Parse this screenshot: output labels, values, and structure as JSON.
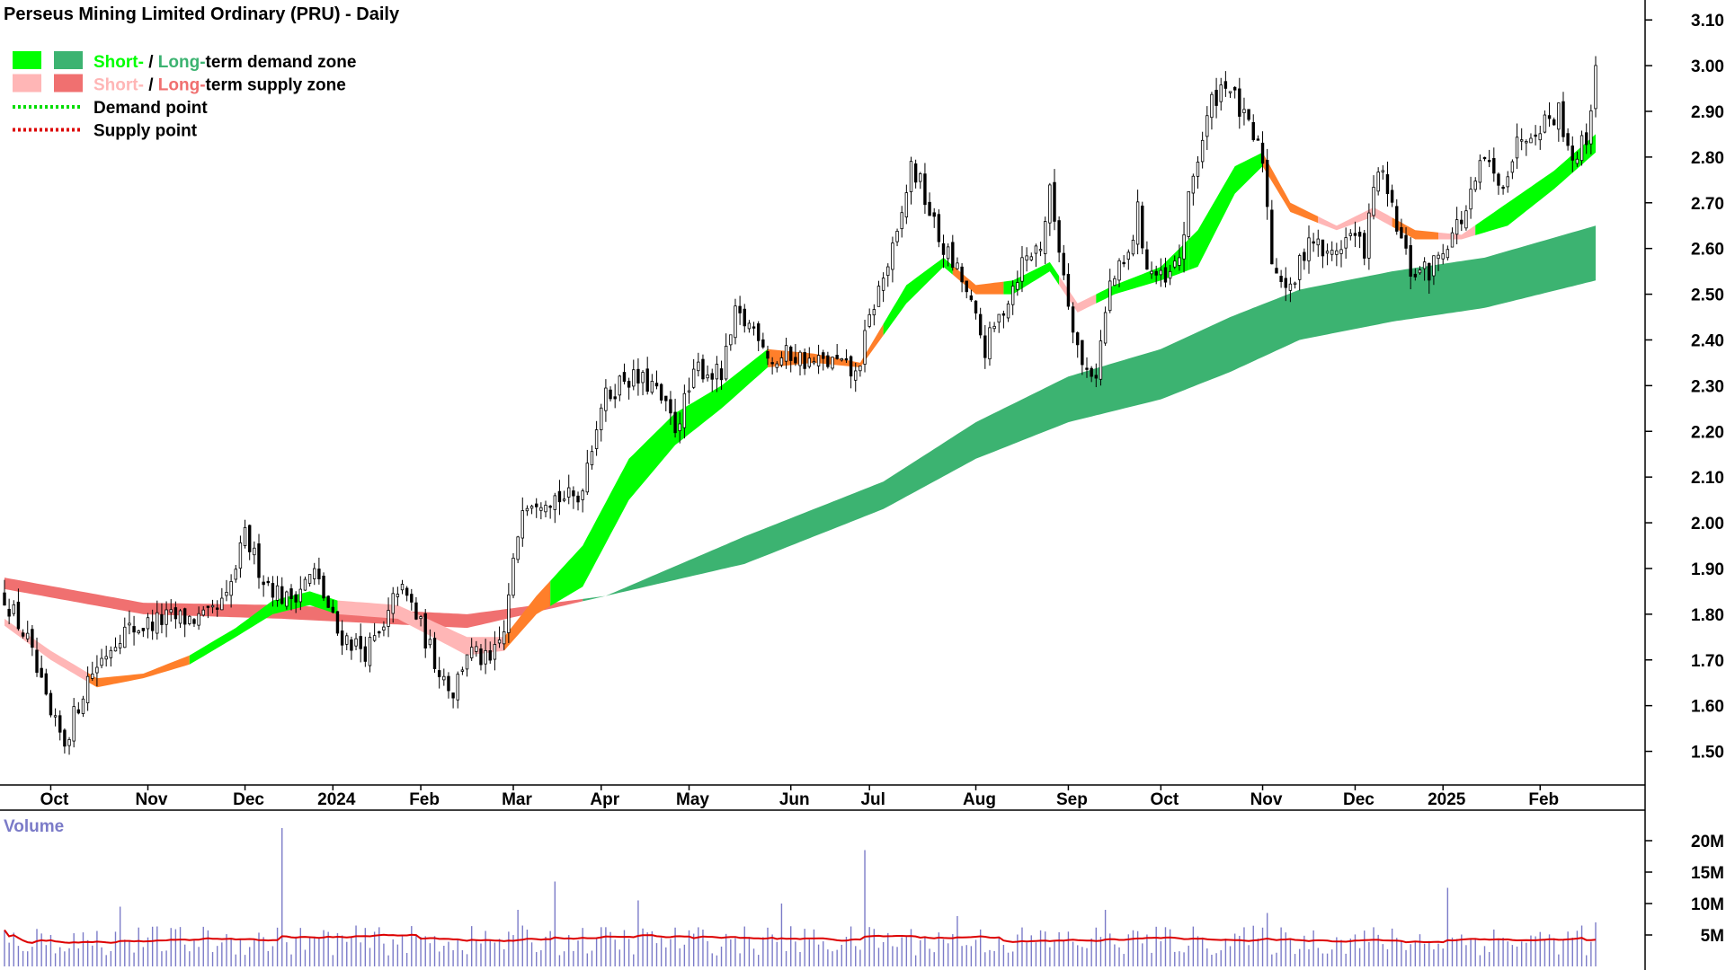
{
  "chart_data": {
    "type": "candlestick",
    "title": "Perseus Mining Limited Ordinary (PRU) - Daily",
    "legend": {
      "placement": "top-left",
      "entries": [
        {
          "id": "demand-zone",
          "parts": [
            "Short-",
            " / ",
            "Long-",
            "term demand zone"
          ],
          "colors": [
            "#00ff00",
            "#000000",
            "#3cb371",
            "#000000"
          ],
          "swatches": [
            "#00ff00",
            "#3cb371"
          ],
          "style": "box"
        },
        {
          "id": "supply-zone",
          "parts": [
            "Short-",
            " / ",
            "Long-",
            "term supply zone"
          ],
          "colors": [
            "#ffb6b6",
            "#000000",
            "#f07070",
            "#000000"
          ],
          "swatches": [
            "#ffb6b6",
            "#f07070"
          ],
          "style": "box"
        },
        {
          "id": "demand-point",
          "parts": [
            "Demand point"
          ],
          "colors": [
            "#000000"
          ],
          "swatches": [
            "#00dd00"
          ],
          "style": "dotted"
        },
        {
          "id": "supply-point",
          "parts": [
            "Supply point"
          ],
          "colors": [
            "#000000"
          ],
          "swatches": [
            "#dd0000"
          ],
          "style": "dotted"
        }
      ]
    },
    "price_axis": {
      "min": 1.45,
      "max": 3.12,
      "ticks": [
        "1.50",
        "1.60",
        "1.70",
        "1.80",
        "1.90",
        "2.00",
        "2.10",
        "2.20",
        "2.30",
        "2.40",
        "2.50",
        "2.60",
        "2.70",
        "2.80",
        "2.90",
        "3.00",
        "3.10"
      ],
      "position": "right"
    },
    "x_labels": [
      {
        "label": "Oct",
        "index": 10
      },
      {
        "label": "Nov",
        "index": 31
      },
      {
        "label": "Dec",
        "index": 52
      },
      {
        "label": "2024",
        "index": 71
      },
      {
        "label": "Feb",
        "index": 90
      },
      {
        "label": "Mar",
        "index": 110
      },
      {
        "label": "Apr",
        "index": 129
      },
      {
        "label": "May",
        "index": 148
      },
      {
        "label": "Jun",
        "index": 170
      },
      {
        "label": "Jul",
        "index": 187
      },
      {
        "label": "Aug",
        "index": 210
      },
      {
        "label": "Sep",
        "index": 230
      },
      {
        "label": "Oct",
        "index": 250
      },
      {
        "label": "Nov",
        "index": 272
      },
      {
        "label": "Dec",
        "index": 292
      },
      {
        "label": "2025",
        "index": 311
      },
      {
        "label": "Feb",
        "index": 332
      }
    ],
    "num_bars": 345,
    "price_anchors": [
      [
        0,
        1.84
      ],
      [
        5,
        1.74
      ],
      [
        10,
        1.57
      ],
      [
        13,
        1.52
      ],
      [
        18,
        1.66
      ],
      [
        25,
        1.76
      ],
      [
        35,
        1.79
      ],
      [
        44,
        1.79
      ],
      [
        48,
        1.83
      ],
      [
        52,
        1.97
      ],
      [
        56,
        1.88
      ],
      [
        61,
        1.83
      ],
      [
        67,
        1.89
      ],
      [
        69,
        1.84
      ],
      [
        72,
        1.76
      ],
      [
        78,
        1.72
      ],
      [
        82,
        1.76
      ],
      [
        85,
        1.86
      ],
      [
        88,
        1.82
      ],
      [
        93,
        1.7
      ],
      [
        97,
        1.63
      ],
      [
        100,
        1.72
      ],
      [
        105,
        1.69
      ],
      [
        108,
        1.76
      ],
      [
        112,
        2.05
      ],
      [
        117,
        2.06
      ],
      [
        124,
        2.05
      ],
      [
        129,
        2.26
      ],
      [
        134,
        2.32
      ],
      [
        140,
        2.3
      ],
      [
        145,
        2.21
      ],
      [
        150,
        2.34
      ],
      [
        155,
        2.32
      ],
      [
        158,
        2.45
      ],
      [
        163,
        2.42
      ],
      [
        166,
        2.35
      ],
      [
        170,
        2.37
      ],
      [
        174,
        2.35
      ],
      [
        180,
        2.35
      ],
      [
        184,
        2.32
      ],
      [
        188,
        2.48
      ],
      [
        193,
        2.62
      ],
      [
        196,
        2.78
      ],
      [
        198,
        2.74
      ],
      [
        202,
        2.62
      ],
      [
        207,
        2.53
      ],
      [
        212,
        2.38
      ],
      [
        216,
        2.47
      ],
      [
        220,
        2.57
      ],
      [
        224,
        2.61
      ],
      [
        226,
        2.72
      ],
      [
        230,
        2.49
      ],
      [
        233,
        2.34
      ],
      [
        236,
        2.33
      ],
      [
        239,
        2.52
      ],
      [
        243,
        2.58
      ],
      [
        245,
        2.68
      ],
      [
        247,
        2.56
      ],
      [
        251,
        2.52
      ],
      [
        254,
        2.58
      ],
      [
        257,
        2.76
      ],
      [
        261,
        2.92
      ],
      [
        264,
        2.97
      ],
      [
        268,
        2.88
      ],
      [
        272,
        2.8
      ],
      [
        274,
        2.58
      ],
      [
        278,
        2.5
      ],
      [
        282,
        2.63
      ],
      [
        286,
        2.58
      ],
      [
        291,
        2.63
      ],
      [
        294,
        2.6
      ],
      [
        297,
        2.78
      ],
      [
        300,
        2.68
      ],
      [
        304,
        2.55
      ],
      [
        308,
        2.55
      ],
      [
        312,
        2.62
      ],
      [
        316,
        2.68
      ],
      [
        320,
        2.8
      ],
      [
        323,
        2.73
      ],
      [
        328,
        2.85
      ],
      [
        333,
        2.88
      ],
      [
        336,
        2.9
      ],
      [
        339,
        2.8
      ],
      [
        342,
        2.84
      ],
      [
        344,
        3.0
      ]
    ],
    "zones": {
      "long_term": {
        "index_range": [
          0,
          344
        ],
        "upper": [
          [
            0,
            1.88
          ],
          [
            30,
            1.825
          ],
          [
            60,
            1.82
          ],
          [
            100,
            1.8
          ],
          [
            130,
            1.84
          ],
          [
            160,
            1.97
          ],
          [
            190,
            2.09
          ],
          [
            210,
            2.22
          ],
          [
            230,
            2.32
          ],
          [
            250,
            2.38
          ],
          [
            265,
            2.45
          ],
          [
            280,
            2.51
          ],
          [
            300,
            2.55
          ],
          [
            320,
            2.58
          ],
          [
            344,
            2.65
          ]
        ],
        "lower": [
          [
            0,
            1.855
          ],
          [
            30,
            1.8
          ],
          [
            60,
            1.79
          ],
          [
            100,
            1.77
          ],
          [
            130,
            1.84
          ],
          [
            160,
            1.91
          ],
          [
            190,
            2.03
          ],
          [
            210,
            2.14
          ],
          [
            230,
            2.22
          ],
          [
            250,
            2.27
          ],
          [
            265,
            2.33
          ],
          [
            280,
            2.4
          ],
          [
            300,
            2.44
          ],
          [
            320,
            2.47
          ],
          [
            344,
            2.53
          ]
        ],
        "supply_until_index": 125,
        "demand_color": "#3cb371",
        "supply_color": "#f07070"
      },
      "short_term": {
        "index_range": [
          0,
          344
        ],
        "upper": [
          [
            0,
            1.79
          ],
          [
            10,
            1.72
          ],
          [
            20,
            1.66
          ],
          [
            30,
            1.67
          ],
          [
            40,
            1.71
          ],
          [
            50,
            1.77
          ],
          [
            58,
            1.83
          ],
          [
            66,
            1.85
          ],
          [
            72,
            1.83
          ],
          [
            85,
            1.82
          ],
          [
            100,
            1.75
          ],
          [
            108,
            1.75
          ],
          [
            115,
            1.84
          ],
          [
            125,
            1.95
          ],
          [
            135,
            2.14
          ],
          [
            145,
            2.24
          ],
          [
            155,
            2.3
          ],
          [
            165,
            2.38
          ],
          [
            175,
            2.37
          ],
          [
            185,
            2.35
          ],
          [
            195,
            2.52
          ],
          [
            203,
            2.58
          ],
          [
            210,
            2.52
          ],
          [
            218,
            2.53
          ],
          [
            226,
            2.57
          ],
          [
            232,
            2.48
          ],
          [
            240,
            2.52
          ],
          [
            250,
            2.56
          ],
          [
            258,
            2.64
          ],
          [
            266,
            2.78
          ],
          [
            272,
            2.81
          ],
          [
            278,
            2.7
          ],
          [
            288,
            2.65
          ],
          [
            296,
            2.69
          ],
          [
            305,
            2.64
          ],
          [
            315,
            2.63
          ],
          [
            325,
            2.7
          ],
          [
            335,
            2.77
          ],
          [
            344,
            2.85
          ]
        ],
        "lower": [
          [
            0,
            1.775
          ],
          [
            10,
            1.7
          ],
          [
            20,
            1.64
          ],
          [
            30,
            1.66
          ],
          [
            40,
            1.69
          ],
          [
            50,
            1.75
          ],
          [
            58,
            1.8
          ],
          [
            66,
            1.82
          ],
          [
            72,
            1.8
          ],
          [
            85,
            1.79
          ],
          [
            100,
            1.71
          ],
          [
            108,
            1.72
          ],
          [
            115,
            1.8
          ],
          [
            125,
            1.86
          ],
          [
            135,
            2.05
          ],
          [
            145,
            2.17
          ],
          [
            155,
            2.25
          ],
          [
            165,
            2.34
          ],
          [
            175,
            2.35
          ],
          [
            185,
            2.34
          ],
          [
            195,
            2.48
          ],
          [
            203,
            2.56
          ],
          [
            210,
            2.5
          ],
          [
            218,
            2.5
          ],
          [
            226,
            2.55
          ],
          [
            232,
            2.46
          ],
          [
            240,
            2.5
          ],
          [
            250,
            2.53
          ],
          [
            258,
            2.56
          ],
          [
            266,
            2.72
          ],
          [
            272,
            2.78
          ],
          [
            278,
            2.68
          ],
          [
            288,
            2.64
          ],
          [
            296,
            2.67
          ],
          [
            305,
            2.62
          ],
          [
            315,
            2.62
          ],
          [
            325,
            2.65
          ],
          [
            335,
            2.73
          ],
          [
            344,
            2.81
          ]
        ],
        "segments": [
          {
            "from": 0,
            "to": 18,
            "kind": "supply-light"
          },
          {
            "from": 18,
            "to": 40,
            "kind": "transition"
          },
          {
            "from": 40,
            "to": 58,
            "kind": "demand"
          },
          {
            "from": 58,
            "to": 72,
            "kind": "demand"
          },
          {
            "from": 72,
            "to": 108,
            "kind": "supply-light"
          },
          {
            "from": 108,
            "to": 118,
            "kind": "transition"
          },
          {
            "from": 118,
            "to": 165,
            "kind": "demand"
          },
          {
            "from": 165,
            "to": 190,
            "kind": "transition"
          },
          {
            "from": 190,
            "to": 205,
            "kind": "demand"
          },
          {
            "from": 205,
            "to": 216,
            "kind": "transition"
          },
          {
            "from": 216,
            "to": 228,
            "kind": "demand"
          },
          {
            "from": 228,
            "to": 236,
            "kind": "supply-light"
          },
          {
            "from": 236,
            "to": 256,
            "kind": "demand"
          },
          {
            "from": 256,
            "to": 272,
            "kind": "demand"
          },
          {
            "from": 272,
            "to": 284,
            "kind": "transition"
          },
          {
            "from": 284,
            "to": 300,
            "kind": "supply-light"
          },
          {
            "from": 300,
            "to": 310,
            "kind": "transition"
          },
          {
            "from": 310,
            "to": 318,
            "kind": "supply-light"
          },
          {
            "from": 318,
            "to": 344,
            "kind": "demand"
          }
        ],
        "colors": {
          "demand": "#00ff00",
          "supply-light": "#ffb6b6",
          "transition": "#ff7f2a"
        }
      }
    },
    "volume": {
      "label": "Volume",
      "ticks": [
        "5M",
        "10M",
        "15M",
        "20M"
      ],
      "max": 23,
      "baseline_millions": 5,
      "spikes": [
        [
          60,
          22.0
        ],
        [
          186,
          18.5
        ],
        [
          119,
          13.5
        ],
        [
          312,
          12.5
        ],
        [
          137,
          10.5
        ],
        [
          168,
          10.0
        ],
        [
          25,
          9.5
        ],
        [
          111,
          9.0
        ],
        [
          238,
          9.0
        ],
        [
          273,
          8.5
        ],
        [
          206,
          8.0
        ],
        [
          341,
          6.5
        ],
        [
          344,
          7.0
        ]
      ],
      "bar_color": "#7b7bc8",
      "ma_color": "#dd0000"
    },
    "grid": false
  }
}
